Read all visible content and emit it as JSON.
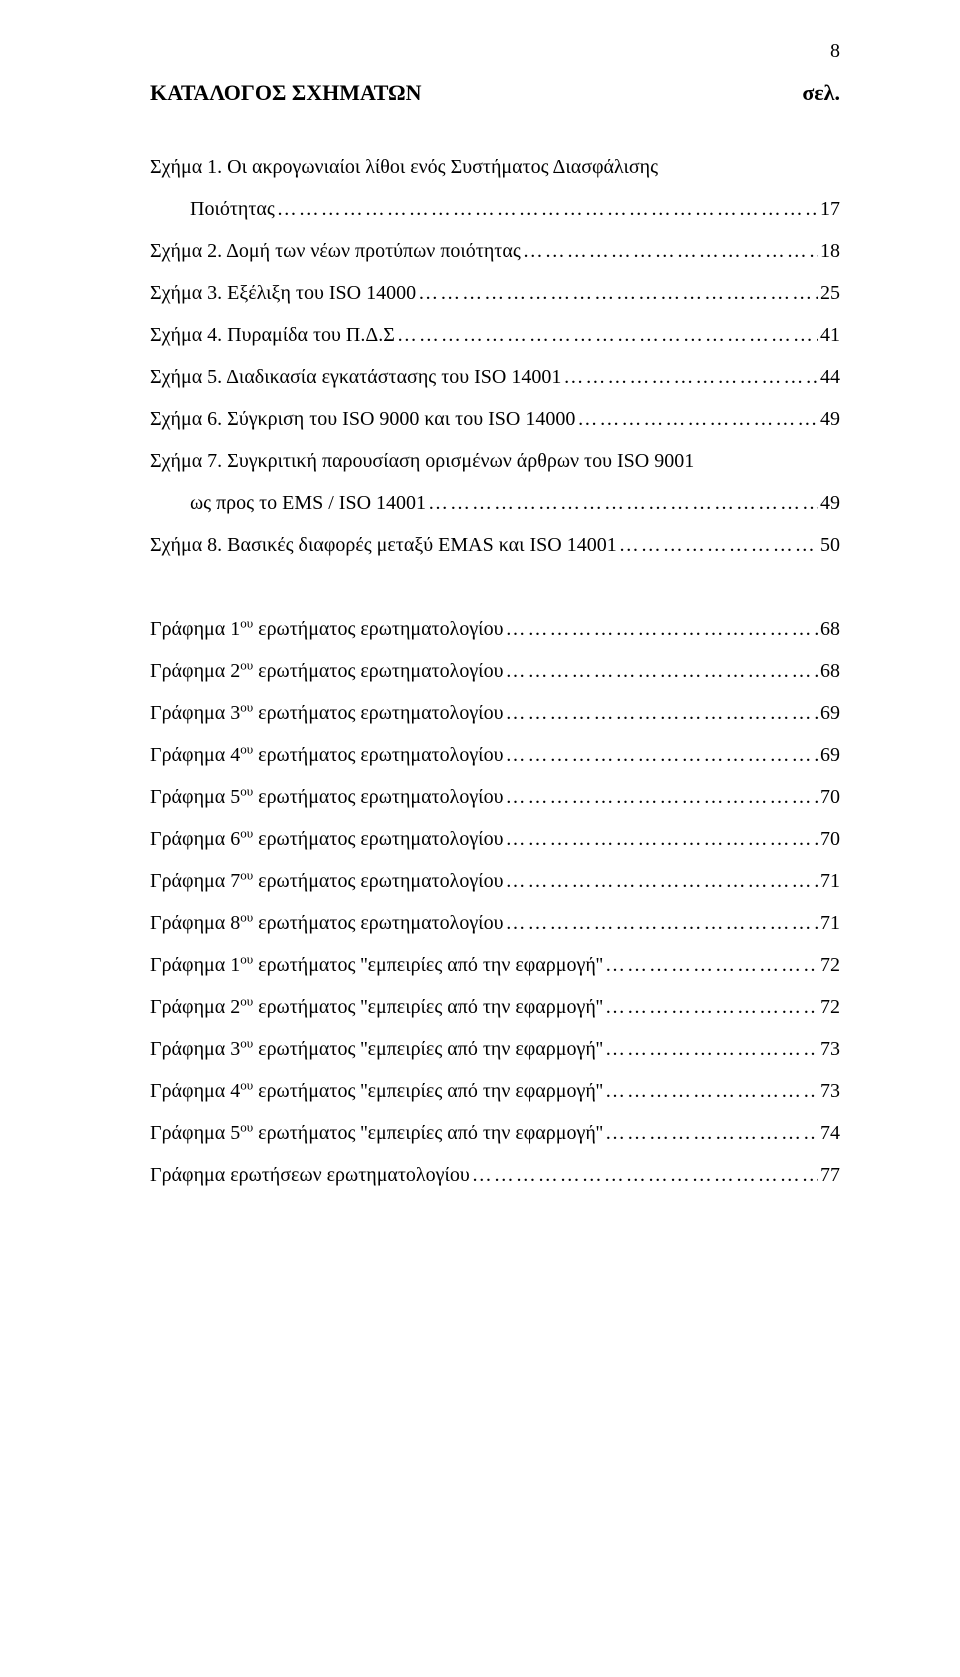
{
  "page_number": "8",
  "heading_left": "ΚΑΤΑΛΟΓΟΣ ΣΧΗΜΑΤΩΝ",
  "heading_right": "σελ.",
  "leader": "…………………………………………………………………………………………………………………………",
  "group1": [
    {
      "label": "Σχήμα 1. Οι ακρογωνιαίοι λίθοι ενός Συστήματος Διασφάλισης",
      "page": "",
      "leader": false,
      "indent": false
    },
    {
      "label": "Ποιότητας",
      "page": "17",
      "leader": true,
      "indent": true
    },
    {
      "label": "Σχήμα 2. Δομή των νέων προτύπων ποιότητας",
      "page": "18",
      "leader": true,
      "indent": false
    },
    {
      "label": "Σχήμα 3. Εξέλιξη του ISO 14000",
      "page": "25",
      "leader": true,
      "indent": false
    },
    {
      "label": "Σχήμα 4. Πυραμίδα του Π.Δ.Σ",
      "page": "41",
      "leader": true,
      "indent": false
    },
    {
      "label": "Σχήμα 5. Διαδικασία εγκατάστασης του ISO 14001",
      "page": "44",
      "leader": true,
      "indent": false
    },
    {
      "label": "Σχήμα 6. Σύγκριση του ISO 9000 και του ISO 14000",
      "page": "49",
      "leader": true,
      "indent": false
    },
    {
      "label": "Σχήμα 7. Συγκριτική παρουσίαση ορισμένων άρθρων του ISO 9001",
      "page": "",
      "leader": false,
      "indent": false
    },
    {
      "label": "ως προς το EMS / ISO 14001",
      "page": "49",
      "leader": true,
      "indent": true
    },
    {
      "label": "Σχήμα 8. Βασικές διαφορές μεταξύ EMAS και ISO 14001",
      "page": "50",
      "leader": true,
      "indent": false
    }
  ],
  "group2": [
    {
      "pre": "Γράφημα 1",
      "sup": "ου",
      "post": " ερωτήματος ερωτηματολογίου",
      "page": "68"
    },
    {
      "pre": "Γράφημα 2",
      "sup": "ου",
      "post": " ερωτήματος ερωτηματολογίου",
      "page": "68"
    },
    {
      "pre": "Γράφημα 3",
      "sup": "ου",
      "post": " ερωτήματος ερωτηματολογίου",
      "page": "69"
    },
    {
      "pre": "Γράφημα 4",
      "sup": "ου",
      "post": " ερωτήματος ερωτηματολογίου",
      "page": "69"
    },
    {
      "pre": "Γράφημα 5",
      "sup": "ου",
      "post": " ερωτήματος ερωτηματολογίου",
      "page": "70"
    },
    {
      "pre": "Γράφημα 6",
      "sup": "ου",
      "post": " ερωτήματος ερωτηματολογίου",
      "page": "70"
    },
    {
      "pre": "Γράφημα 7",
      "sup": "ου",
      "post": " ερωτήματος ερωτηματολογίου",
      "page": "71"
    },
    {
      "pre": "Γράφημα 8",
      "sup": "ου",
      "post": " ερωτήματος ερωτηματολογίου",
      "page": "71"
    },
    {
      "pre": "Γράφημα 1",
      "sup": "ου",
      "post": " ερωτήματος ''εμπειρίες από την εφαρμογή''",
      "page": "72"
    },
    {
      "pre": "Γράφημα 2",
      "sup": "ου",
      "post": " ερωτήματος ''εμπειρίες από την εφαρμογή''",
      "page": "72"
    },
    {
      "pre": "Γράφημα 3",
      "sup": "ου",
      "post": " ερωτήματος ''εμπειρίες από την εφαρμογή''",
      "page": "73"
    },
    {
      "pre": "Γράφημα 4",
      "sup": "ου",
      "post": " ερωτήματος ''εμπειρίες από την εφαρμογή''",
      "page": "73"
    },
    {
      "pre": "Γράφημα 5",
      "sup": "ου",
      "post": " ερωτήματος ''εμπειρίες από την εφαρμογή''",
      "page": "74"
    },
    {
      "pre": "Γράφημα ερωτήσεων ερωτηματολογίου",
      "sup": "",
      "post": "",
      "page": "77"
    }
  ]
}
